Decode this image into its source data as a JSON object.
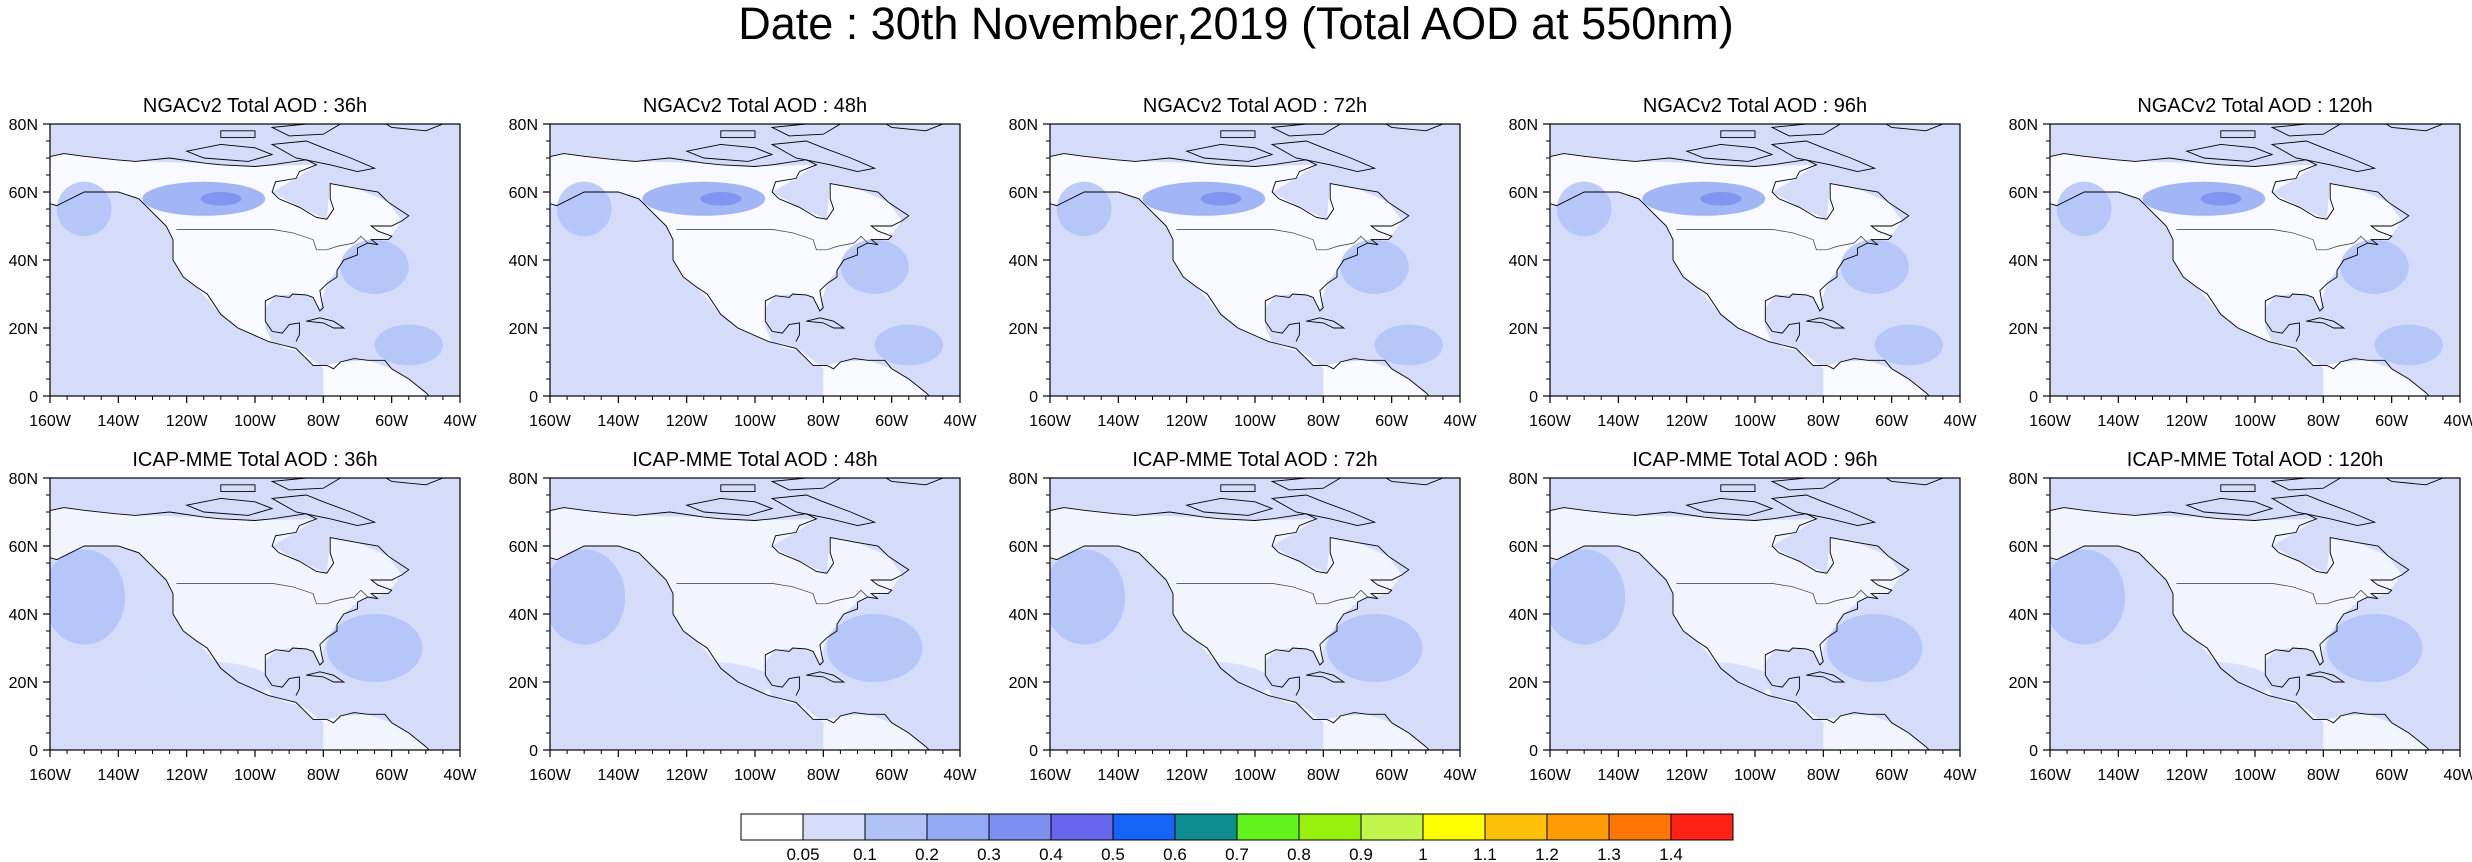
{
  "figure": {
    "title": "Date : 30th November,2019 (Total AOD at 550nm)"
  },
  "axes": {
    "lat_labels": [
      "0",
      "20N",
      "40N",
      "60N",
      "80N"
    ],
    "lon_labels": [
      "160W",
      "140W",
      "120W",
      "100W",
      "80W",
      "60W",
      "40W"
    ],
    "lat_range": [
      0,
      80
    ],
    "lon_range": [
      -160,
      -40
    ]
  },
  "rows": [
    {
      "model": "NGACv2",
      "panels": [
        {
          "title": "NGACv2 Total AOD : 36h",
          "lead": "36h"
        },
        {
          "title": "NGACv2 Total AOD : 48h",
          "lead": "48h"
        },
        {
          "title": "NGACv2 Total AOD : 72h",
          "lead": "72h"
        },
        {
          "title": "NGACv2 Total AOD : 96h",
          "lead": "96h"
        },
        {
          "title": "NGACv2 Total AOD : 120h",
          "lead": "120h"
        }
      ]
    },
    {
      "model": "ICAP-MME",
      "panels": [
        {
          "title": "ICAP-MME Total AOD : 36h",
          "lead": "36h"
        },
        {
          "title": "ICAP-MME Total AOD : 48h",
          "lead": "48h"
        },
        {
          "title": "ICAP-MME Total AOD : 72h",
          "lead": "72h"
        },
        {
          "title": "ICAP-MME Total AOD : 96h",
          "lead": "96h"
        },
        {
          "title": "ICAP-MME Total AOD : 120h",
          "lead": "120h"
        }
      ]
    }
  ],
  "colorbar": {
    "labels": [
      "0.05",
      "0.1",
      "0.2",
      "0.3",
      "0.4",
      "0.5",
      "0.6",
      "0.7",
      "0.8",
      "0.9",
      "1",
      "1.1",
      "1.2",
      "1.3",
      "1.4"
    ],
    "colors": [
      "#ffffff",
      "#d4dcfa",
      "#b1c2f7",
      "#93a9f4",
      "#7d8ff1",
      "#6667ec",
      "#1564f7",
      "#0d8d8f",
      "#63f41d",
      "#96f20d",
      "#c3f64c",
      "#ffff00",
      "#fec10a",
      "#fe9d05",
      "#fe7603",
      "#fe2116"
    ]
  },
  "colors": {
    "land": "#ffffff",
    "background": "#d4dcfa",
    "coast": "#000000"
  }
}
